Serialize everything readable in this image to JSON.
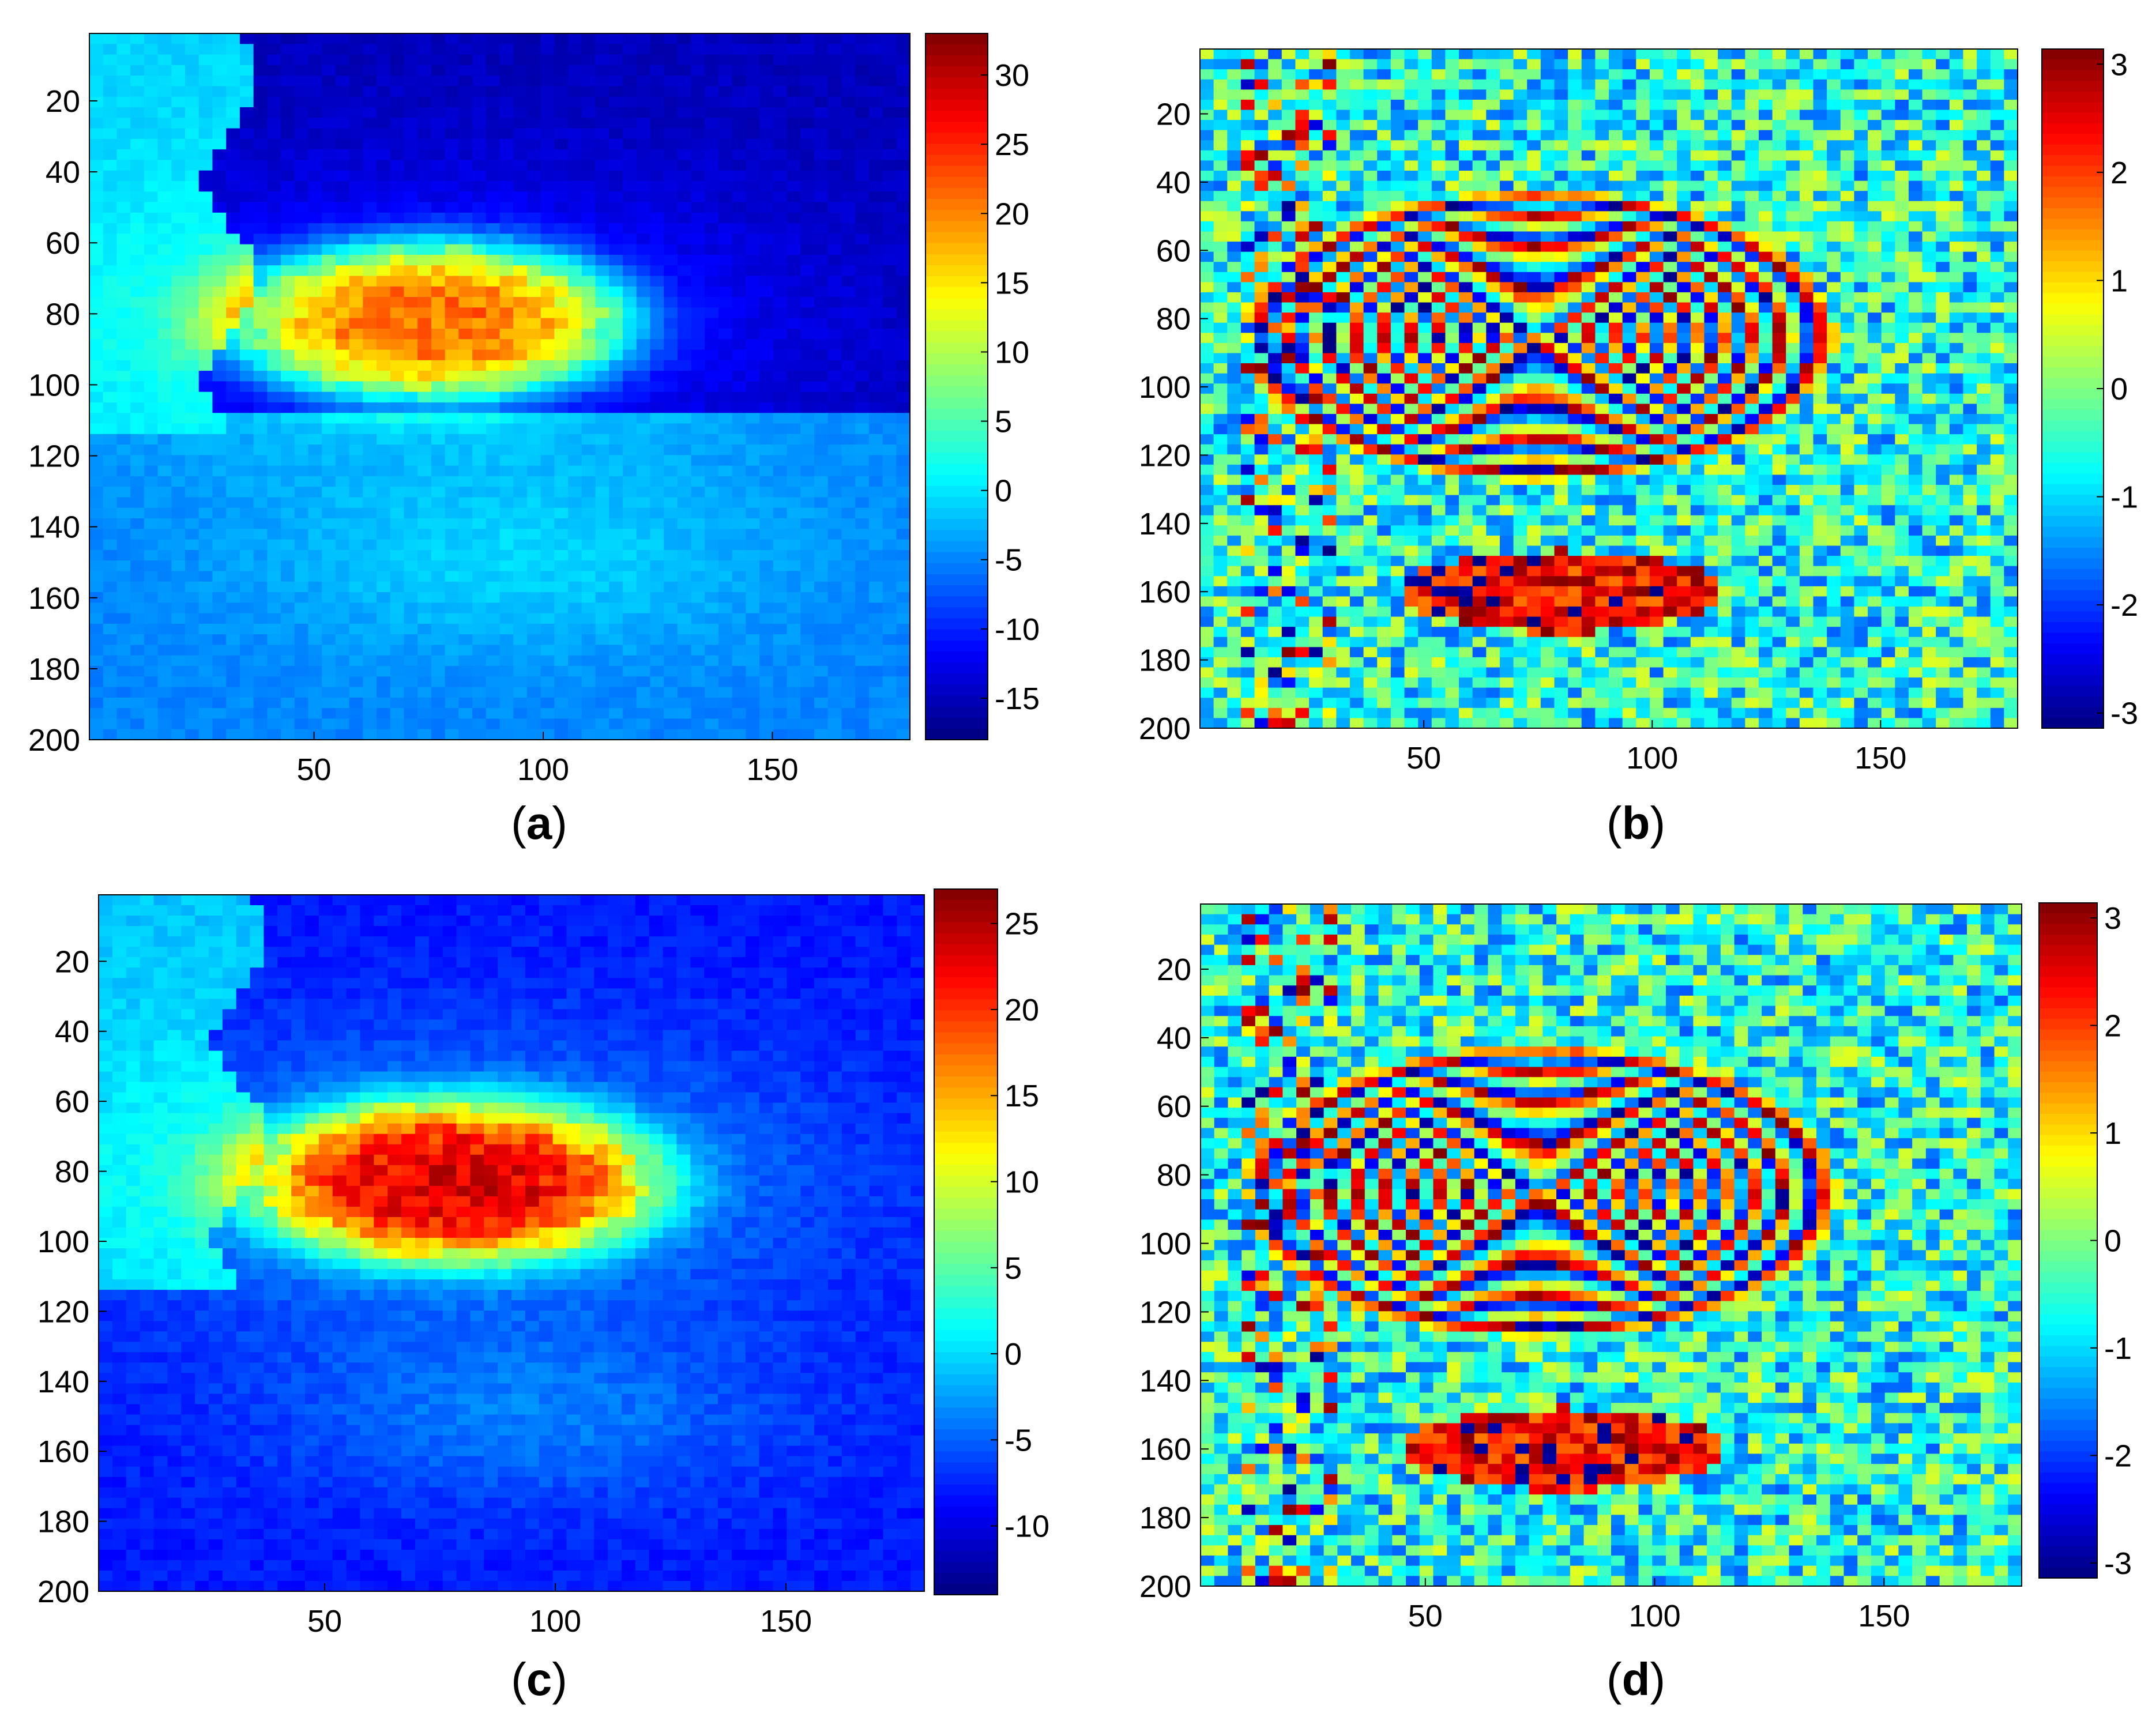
{
  "chart_data": [
    {
      "type": "heatmap",
      "panel_label": "a",
      "xticks": [
        50,
        100,
        150
      ],
      "yticks": [
        20,
        40,
        60,
        80,
        100,
        120,
        140,
        160,
        180,
        200
      ],
      "xlim": [
        1,
        180
      ],
      "ylim": [
        1,
        200
      ],
      "y_reversed": true,
      "colormap": "jet",
      "colorbar": {
        "range": [
          -18,
          33
        ],
        "ticks": [
          -15,
          -10,
          -5,
          0,
          5,
          10,
          15,
          20,
          25,
          30
        ]
      },
      "field": {
        "kind": "deformation",
        "background_upper": -15,
        "background_lower": -5,
        "split_row": 109,
        "left_region_value": -1,
        "blob_center": [
          75,
          82
        ],
        "blob_radii": [
          43,
          22
        ],
        "peak": 30
      }
    },
    {
      "type": "heatmap",
      "panel_label": "b",
      "xticks": [
        50,
        100,
        150
      ],
      "yticks": [
        20,
        40,
        60,
        80,
        100,
        120,
        140,
        160,
        180,
        200
      ],
      "xlim": [
        1,
        180
      ],
      "ylim": [
        1,
        200
      ],
      "y_reversed": true,
      "colormap": "jet",
      "colorbar": {
        "range": [
          -3.14,
          3.14
        ],
        "ticks": [
          -3,
          -2,
          -1,
          0,
          1,
          2,
          3
        ]
      },
      "field": {
        "kind": "wrapped_phase",
        "fringe_center": [
          75,
          85
        ],
        "fringe_radii": [
          52,
          34
        ],
        "fringe_count": 8
      }
    },
    {
      "type": "heatmap",
      "panel_label": "c",
      "xticks": [
        50,
        100,
        150
      ],
      "yticks": [
        20,
        40,
        60,
        80,
        100,
        120,
        140,
        160,
        180,
        200
      ],
      "xlim": [
        1,
        180
      ],
      "ylim": [
        1,
        200
      ],
      "y_reversed": true,
      "colormap": "jet",
      "colorbar": {
        "range": [
          -14,
          27
        ],
        "ticks": [
          -10,
          -5,
          0,
          5,
          10,
          15,
          20,
          25
        ]
      },
      "field": {
        "kind": "deformation",
        "background_upper": -8,
        "background_lower": -8,
        "split_row": 109,
        "left_region_value": -1,
        "blob_center": [
          78,
          83
        ],
        "blob_radii": [
          44,
          23
        ],
        "peak": 25
      }
    },
    {
      "type": "heatmap",
      "panel_label": "d",
      "xticks": [
        50,
        100,
        150
      ],
      "yticks": [
        20,
        40,
        60,
        80,
        100,
        120,
        140,
        160,
        180,
        200
      ],
      "xlim": [
        1,
        180
      ],
      "ylim": [
        1,
        200
      ],
      "y_reversed": true,
      "colormap": "jet",
      "colorbar": {
        "range": [
          -3.14,
          3.14
        ],
        "ticks": [
          -3,
          -2,
          -1,
          0,
          1,
          2,
          3
        ]
      },
      "field": {
        "kind": "wrapped_phase",
        "fringe_center": [
          75,
          85
        ],
        "fringe_radii": [
          52,
          34
        ],
        "fringe_count": 8
      }
    }
  ]
}
